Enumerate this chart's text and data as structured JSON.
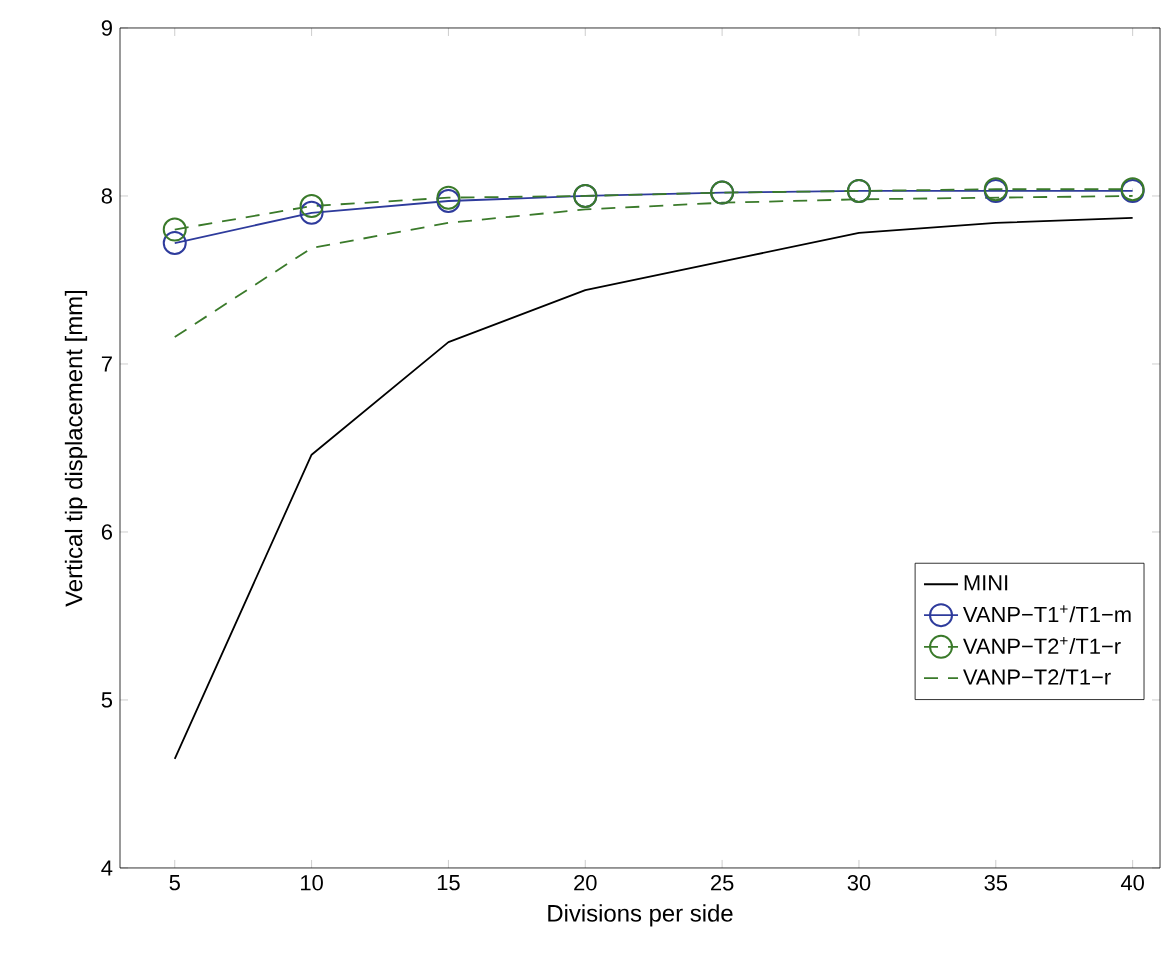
{
  "chart_data": {
    "type": "line",
    "xlabel": "Divisions per side",
    "ylabel": "Vertical tip displacement [mm]",
    "x": [
      5,
      10,
      15,
      20,
      25,
      30,
      35,
      40
    ],
    "xlim": [
      3,
      41
    ],
    "xticks": [
      5,
      10,
      15,
      20,
      25,
      30,
      35,
      40
    ],
    "ylim": [
      4,
      9
    ],
    "yticks": [
      4,
      5,
      6,
      7,
      8,
      9
    ],
    "legend": "bottom right",
    "grid": false,
    "series": [
      {
        "name": "MINI",
        "color": "#000000",
        "marker": "none",
        "line_style": "solid",
        "values": [
          4.65,
          6.46,
          7.13,
          7.44,
          7.61,
          7.78,
          7.84,
          7.87
        ]
      },
      {
        "name": "VANP−T1$^{+}$/T1−m",
        "color": "#2e3b9c",
        "marker": "circle",
        "line_style": "solid",
        "values": [
          7.72,
          7.9,
          7.97,
          8.0,
          8.02,
          8.03,
          8.03,
          8.03
        ]
      },
      {
        "name": "VANP−T2$^{+}$/T1−r",
        "color": "#3a7a2a",
        "marker": "circle",
        "line_style": "dashed",
        "values": [
          7.8,
          7.94,
          7.99,
          8.0,
          8.02,
          8.03,
          8.04,
          8.04
        ]
      },
      {
        "name": "VANP−T2/T1−r",
        "color": "#3a7a2a",
        "marker": "none",
        "line_style": "dashed",
        "values": [
          7.16,
          7.69,
          7.84,
          7.92,
          7.96,
          7.98,
          7.99,
          8.0
        ]
      }
    ]
  }
}
